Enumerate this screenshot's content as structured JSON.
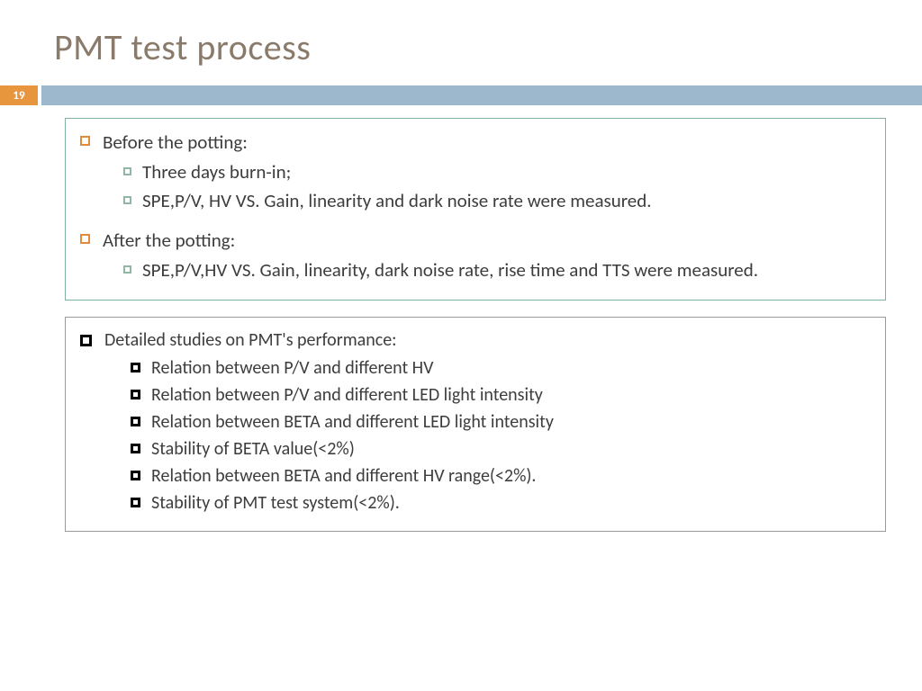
{
  "title": "PMT test process",
  "page_number": "19",
  "colors": {
    "title_text": "#8a7a6a",
    "page_num_bg": "#e8963e",
    "divider_bar": "#9db8cc",
    "box1_border": "#7fb29c",
    "box2_border": "#9a9a9a",
    "bullet_orange": "#e38b3a",
    "bullet_green": "#8fb8a4",
    "body_text": "#3d3d3d"
  },
  "box1": {
    "sections": [
      {
        "heading": "Before the potting:",
        "items": [
          "Three days burn-in;",
          "SPE,P/V, HV VS. Gain, linearity and dark noise rate were measured."
        ]
      },
      {
        "heading": "After the potting:",
        "items": [
          "SPE,P/V,HV VS. Gain, linearity, dark noise rate, rise time and TTS were measured."
        ]
      }
    ]
  },
  "box2": {
    "heading": "Detailed studies on PMT's performance:",
    "items": [
      "Relation between P/V and different HV",
      "Relation between P/V and different LED light intensity",
      "Relation between BETA and different LED light intensity",
      "Stability of BETA value(<2%)",
      "Relation between BETA and different HV range(<2%).",
      "Stability of PMT test system(<2%)."
    ]
  }
}
